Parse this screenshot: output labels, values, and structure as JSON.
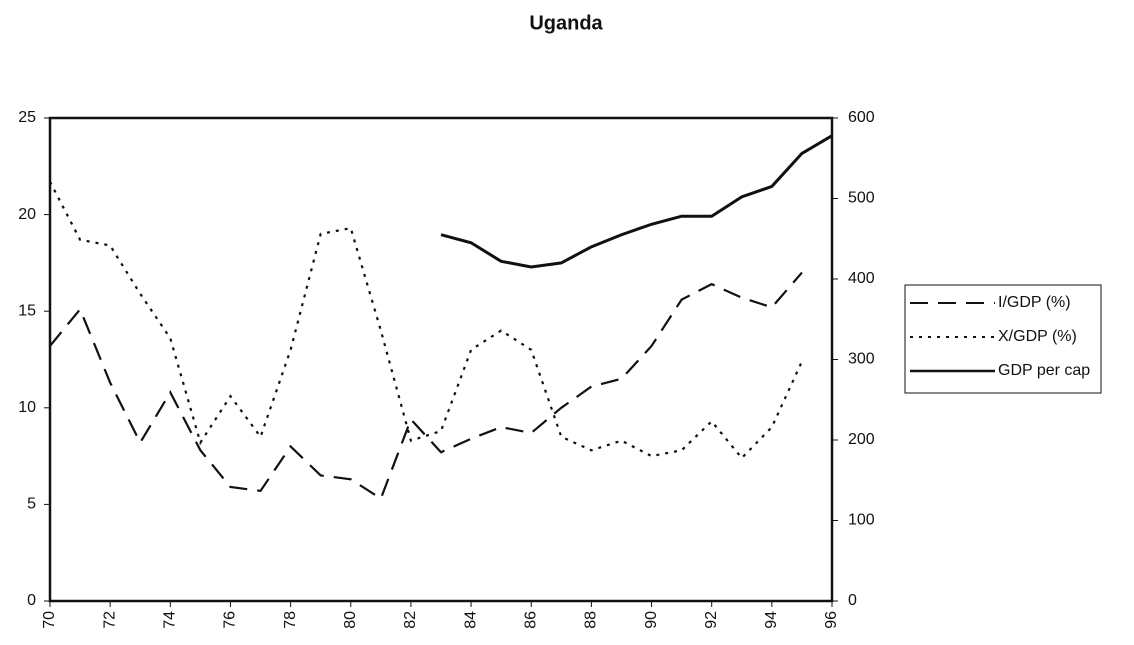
{
  "chart_data": {
    "type": "line",
    "title": "Uganda",
    "xlim": [
      70,
      96
    ],
    "xticks": [
      70,
      72,
      74,
      76,
      78,
      80,
      82,
      84,
      86,
      88,
      90,
      92,
      94,
      96
    ],
    "ylim": [
      0,
      25
    ],
    "yticks": [
      0,
      5,
      10,
      15,
      20,
      25
    ],
    "y2lim": [
      0,
      600
    ],
    "y2ticks": [
      0,
      100,
      200,
      300,
      400,
      500,
      600
    ],
    "series": [
      {
        "name": "I/GDP (%)",
        "color": "#111111",
        "dash": "dashed",
        "x": [
          70,
          71,
          72,
          73,
          74,
          75,
          76,
          77,
          78,
          79,
          80,
          81,
          82,
          83,
          84,
          85,
          86,
          87,
          88,
          89,
          90,
          91,
          92,
          93,
          94,
          95
        ],
        "values": [
          13.2,
          15.1,
          11.3,
          8.2,
          10.8,
          7.8,
          5.9,
          5.7,
          8.0,
          6.5,
          6.3,
          5.3,
          9.4,
          7.7,
          8.4,
          9.0,
          8.7,
          10.0,
          11.1,
          11.5,
          13.2,
          15.6,
          16.4,
          15.7,
          15.2,
          17.0
        ]
      },
      {
        "name": "X/GDP (%)",
        "color": "#111111",
        "dash": "dotted",
        "x": [
          70,
          71,
          72,
          73,
          74,
          75,
          76,
          77,
          78,
          79,
          80,
          81,
          82,
          83,
          84,
          85,
          86,
          87,
          88,
          89,
          90,
          91,
          92,
          93,
          94,
          95
        ],
        "values": [
          21.7,
          18.7,
          18.4,
          15.9,
          13.6,
          8.2,
          10.6,
          8.5,
          13.0,
          19.0,
          19.3,
          14.0,
          8.3,
          8.8,
          13.0,
          14.0,
          13.0,
          8.5,
          7.8,
          8.3,
          7.5,
          7.8,
          9.3,
          7.4,
          9.0,
          12.4
        ]
      },
      {
        "name": "GDP per cap",
        "color": "#111111",
        "dash": "solid",
        "axis": "y2",
        "x": [
          83,
          84,
          85,
          86,
          87,
          88,
          89,
          90,
          91,
          92,
          93,
          94,
          95,
          96
        ],
        "values": [
          455,
          445,
          422,
          415,
          420,
          440,
          455,
          468,
          478,
          478,
          502,
          515,
          556,
          578
        ]
      }
    ]
  }
}
